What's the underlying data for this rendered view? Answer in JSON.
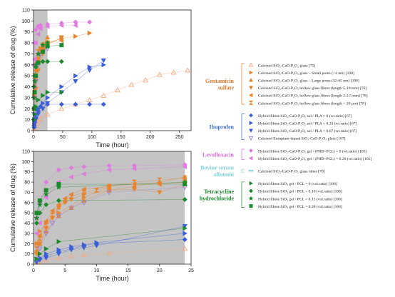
{
  "chart_data": [
    {
      "type": "scatter",
      "ylabel": "Cumulative release of drug (%)",
      "xlabel": "Time (hour)",
      "xlim": [
        0,
        270
      ],
      "ylim": [
        0,
        110
      ],
      "xticks": [
        "0",
        "50",
        "100",
        "150",
        "200",
        "250"
      ],
      "yticks": [
        "0",
        "10",
        "20",
        "30",
        "40",
        "50",
        "60",
        "70",
        "80",
        "90",
        "100",
        "110"
      ],
      "shaded_region": [
        0,
        24
      ],
      "series": [
        {
          "key": "s1",
          "marker": "tri-up-open",
          "color": "#f4a77f",
          "x": [
            1,
            2,
            4,
            6,
            8,
            12,
            24,
            48,
            72,
            96,
            120,
            144,
            168,
            192,
            216,
            240,
            264
          ],
          "y": [
            2,
            3,
            5,
            7,
            9,
            11,
            15,
            20,
            24,
            28,
            32,
            37,
            42,
            46,
            51,
            53,
            55
          ]
        },
        {
          "key": "s2",
          "marker": "tri-right",
          "color": "#e8842d",
          "x": [
            1,
            2,
            4,
            8,
            12,
            24,
            48,
            72,
            96
          ],
          "y": [
            32,
            40,
            50,
            65,
            75,
            80,
            84,
            86,
            89
          ]
        },
        {
          "key": "s3",
          "marker": "tri-up",
          "color": "#e8842d",
          "x": [
            1,
            2,
            4,
            8,
            12,
            16,
            24
          ],
          "y": [
            20,
            32,
            47,
            62,
            72,
            79,
            85
          ]
        },
        {
          "key": "s4",
          "marker": "tri-down",
          "color": "#e8842d",
          "x": [
            2,
            4,
            8,
            16,
            24,
            48
          ],
          "y": [
            20,
            38,
            55,
            70,
            78,
            85
          ]
        },
        {
          "key": "s5",
          "marker": "tri-left",
          "color": "#e8842d",
          "x": [
            2,
            4,
            8,
            16,
            24,
            48
          ],
          "y": [
            40,
            55,
            66,
            75,
            80,
            82
          ]
        },
        {
          "key": "s6",
          "marker": "hourglass",
          "color": "#e8842d",
          "x": [
            1,
            2,
            4,
            8,
            16,
            24,
            48
          ],
          "y": [
            38,
            50,
            63,
            72,
            78,
            80,
            84
          ]
        },
        {
          "key": "s7",
          "marker": "diamond",
          "color": "#3a5fd9",
          "x": [
            1,
            2,
            4,
            8,
            12,
            24,
            48,
            72,
            96,
            120
          ],
          "y": [
            3,
            8,
            12,
            18,
            22,
            24,
            24,
            24,
            24,
            24
          ]
        },
        {
          "key": "s8",
          "marker": "tri-right",
          "color": "#3a5fd9",
          "x": [
            1,
            2,
            4,
            8,
            16,
            24,
            48,
            72,
            96,
            120
          ],
          "y": [
            5,
            10,
            15,
            20,
            25,
            30,
            40,
            50,
            58,
            60
          ]
        },
        {
          "key": "s9",
          "marker": "tri-down",
          "color": "#3a5fd9",
          "x": [
            1,
            2,
            4,
            8,
            16,
            24,
            48,
            72,
            96,
            120
          ],
          "y": [
            3,
            6,
            10,
            15,
            20,
            25,
            35,
            45,
            55,
            64
          ]
        },
        {
          "key": "s10",
          "marker": "tri-down-open",
          "color": "#9a7fd8",
          "x": [
            1,
            2,
            4,
            8,
            12,
            24
          ],
          "y": [
            15,
            30,
            45,
            60,
            70,
            75
          ]
        },
        {
          "key": "s11",
          "marker": "diamond",
          "color": "#e07ae0",
          "x": [
            1,
            2,
            4,
            8,
            12,
            24,
            48,
            72,
            96
          ],
          "y": [
            60,
            80,
            92,
            95,
            96,
            97,
            98,
            99,
            99
          ]
        },
        {
          "key": "s12",
          "marker": "tri-left",
          "color": "#e07ae0",
          "x": [
            1,
            2,
            4,
            8,
            12,
            24,
            48,
            72
          ],
          "y": [
            40,
            65,
            80,
            88,
            93,
            95,
            96,
            96
          ]
        },
        {
          "key": "s13",
          "marker": "tri-right",
          "color": "#1b8a2c",
          "x": [
            1,
            2,
            4,
            8,
            16,
            24,
            48
          ],
          "y": [
            10,
            15,
            22,
            28,
            32,
            35,
            35
          ]
        },
        {
          "key": "s14",
          "marker": "diamond",
          "color": "#1b8a2c",
          "x": [
            1,
            2,
            4,
            8,
            16,
            24,
            48
          ],
          "y": [
            40,
            50,
            58,
            62,
            63,
            63,
            63
          ]
        },
        {
          "key": "s15",
          "marker": "star",
          "color": "#1b8a2c",
          "x": [
            1,
            2,
            4,
            8,
            16,
            24
          ],
          "y": [
            30,
            45,
            60,
            70,
            78,
            80
          ]
        },
        {
          "key": "s16",
          "marker": "square",
          "color": "#1b8a2c",
          "x": [
            1,
            2,
            4,
            8,
            16,
            24,
            48
          ],
          "y": [
            20,
            35,
            50,
            62,
            72,
            77,
            78
          ]
        }
      ]
    },
    {
      "type": "scatter",
      "ylabel": "Cumulative release of drug (%)",
      "xlabel": "Time (hour)",
      "xlim": [
        0,
        25
      ],
      "ylim": [
        0,
        110
      ],
      "xticks": [
        "0",
        "5",
        "10",
        "15",
        "20",
        "25"
      ],
      "yticks": [
        "0",
        "10",
        "20",
        "30",
        "40",
        "50",
        "60",
        "70",
        "80",
        "90",
        "100",
        "110"
      ],
      "shaded_region": [
        0,
        24
      ],
      "series": [
        {
          "key": "s1",
          "marker": "tri-up-open",
          "color": "#f4a77f",
          "x": [
            0.5,
            1,
            2,
            4,
            6,
            8,
            12,
            24
          ],
          "y": [
            2,
            3,
            4,
            6,
            8,
            9,
            11,
            15
          ]
        },
        {
          "key": "s2",
          "marker": "tri-right",
          "color": "#e8842d",
          "x": [
            0.5,
            1,
            2,
            4,
            8,
            12
          ],
          "y": [
            20,
            32,
            40,
            50,
            65,
            75
          ]
        },
        {
          "key": "s3",
          "marker": "tri-up",
          "color": "#e8842d",
          "x": [
            0.5,
            1,
            2,
            4,
            6,
            8,
            12,
            16,
            20,
            24
          ],
          "y": [
            12,
            20,
            32,
            47,
            55,
            62,
            72,
            76,
            80,
            85
          ]
        },
        {
          "key": "s4",
          "marker": "tri-down",
          "color": "#e8842d",
          "x": [
            0.5,
            1,
            2,
            3,
            4,
            5,
            6,
            8,
            12,
            16,
            20,
            24
          ],
          "y": [
            10,
            20,
            35,
            45,
            55,
            60,
            63,
            68,
            72,
            73,
            70,
            78
          ]
        },
        {
          "key": "s5",
          "marker": "tri-left",
          "color": "#e8842d",
          "x": [
            0.5,
            1,
            2,
            3,
            4,
            5,
            6,
            8,
            12,
            16,
            20,
            24
          ],
          "y": [
            20,
            28,
            42,
            52,
            58,
            64,
            68,
            73,
            76,
            78,
            78,
            80
          ]
        },
        {
          "key": "s6",
          "marker": "hourglass",
          "color": "#e8842d",
          "x": [
            0.5,
            1,
            2,
            3,
            4,
            5,
            6,
            8,
            10,
            12,
            16,
            20,
            24
          ],
          "y": [
            15,
            25,
            38,
            48,
            56,
            62,
            66,
            70,
            72,
            76,
            80,
            82,
            84
          ]
        },
        {
          "key": "s7",
          "marker": "diamond",
          "color": "#3a5fd9",
          "x": [
            0.5,
            1,
            2,
            4,
            6,
            8,
            10,
            24
          ],
          "y": [
            3,
            5,
            8,
            12,
            15,
            18,
            20,
            24
          ]
        },
        {
          "key": "s8",
          "marker": "tri-right",
          "color": "#3a5fd9",
          "x": [
            0.5,
            1,
            2,
            4,
            6,
            8,
            10,
            24
          ],
          "y": [
            4,
            6,
            10,
            14,
            17,
            19,
            21,
            30
          ]
        },
        {
          "key": "s9",
          "marker": "tri-down",
          "color": "#3a5fd9",
          "x": [
            0.5,
            1,
            2,
            4,
            6,
            8,
            10,
            24
          ],
          "y": [
            2,
            4,
            6,
            10,
            14,
            16,
            18,
            37
          ]
        },
        {
          "key": "s10",
          "marker": "tri-down-open",
          "color": "#9a7fd8",
          "x": [
            0.5,
            1,
            2,
            3,
            4,
            6,
            8,
            12,
            24
          ],
          "y": [
            5,
            15,
            30,
            40,
            47,
            55,
            60,
            70,
            75
          ]
        },
        {
          "key": "s11",
          "marker": "diamond",
          "color": "#e07ae0",
          "x": [
            0.5,
            1,
            2,
            4,
            6,
            8,
            12,
            16,
            24
          ],
          "y": [
            45,
            60,
            80,
            92,
            94,
            95,
            96,
            96,
            97
          ]
        },
        {
          "key": "s12",
          "marker": "tri-left",
          "color": "#e07ae0",
          "x": [
            0.5,
            1,
            2,
            4,
            6,
            8,
            12,
            16,
            24
          ],
          "y": [
            30,
            40,
            65,
            80,
            85,
            88,
            92,
            93,
            95
          ]
        },
        {
          "key": "s13",
          "marker": "tri-right",
          "color": "#1b8a2c",
          "x": [
            0.5,
            1,
            2,
            4,
            24
          ],
          "y": [
            5,
            10,
            15,
            22,
            35
          ]
        },
        {
          "key": "s14",
          "marker": "diamond",
          "color": "#1b8a2c",
          "x": [
            0.5,
            1,
            2,
            4,
            24
          ],
          "y": [
            40,
            50,
            58,
            62,
            63
          ]
        },
        {
          "key": "s15",
          "marker": "star",
          "color": "#1b8a2c",
          "x": [
            0.5,
            1,
            2,
            4,
            24
          ],
          "y": [
            45,
            58,
            68,
            75,
            80
          ]
        },
        {
          "key": "s16",
          "marker": "square",
          "color": "#1b8a2c",
          "x": [
            0.5,
            1,
            2,
            4,
            24
          ],
          "y": [
            50,
            62,
            72,
            78,
            78
          ]
        }
      ]
    }
  ],
  "legend": {
    "groups": [
      {
        "name": "Gentamicin sulfate",
        "color": "#e07a28",
        "entries": [
          {
            "series": "s1",
            "marker": "tri-up-open",
            "color": "#f4a77f",
            "text": "Calcined SiO₂-CaO-P₂O₅ glass [75]"
          },
          {
            "series": "s2",
            "marker": "tri-right",
            "color": "#e8842d",
            "text": "Calcined SiO₂-CaO-P₂O₅ glass – Small pores (<4 nm) [108]"
          },
          {
            "series": "s3",
            "marker": "tri-up",
            "color": "#e8842d",
            "text": "Calcined SiO₂-CaO-P₂O₅ glass – Large pores (32-65 nm) [108]"
          },
          {
            "series": "s4",
            "marker": "tri-down",
            "color": "#e8842d",
            "text": "Calcined SiO₂-CaO-P₂O₅ hollow glass fibres (length 5-10 mm) [76]"
          },
          {
            "series": "s5",
            "marker": "tri-left",
            "color": "#e8842d",
            "text": "Calcined SiO₂-CaO-P₂O₅ hollow glass fibres (length 2-2.5 mm) [78]"
          },
          {
            "series": "s6",
            "marker": "hourglass",
            "color": "#e8842d",
            "text": "Calcined SiO₂-CaO-P₂O₅ hollow glass fibres (length < 20 µm) [78]"
          }
        ]
      },
      {
        "name": "Ibuprofen",
        "color": "#3a6fd9",
        "entries": [
          {
            "series": "s7",
            "marker": "diamond",
            "color": "#3a5fd9",
            "text": "Hybrid fibres SiO₂-CaO-P₂O₅ sol / PLA = 0 (wt.ratio) [67]"
          },
          {
            "series": "s8",
            "marker": "tri-right",
            "color": "#3a5fd9",
            "text": "Hybrid fibres SiO₂-CaO-P₂O₅ sol / PLA = 0.33 (wt.ratio) [67]"
          },
          {
            "series": "s9",
            "marker": "tri-down",
            "color": "#3a5fd9",
            "text": "Hybrid fibres SiO₂-CaO-P₂O₅ sol / PLA = 0.67 (wt.ratio) [67]"
          },
          {
            "series": "s10",
            "marker": "tri-down-open",
            "color": "#9a7fd8",
            "text": "Calcined Europium-doped SiO₂-CaO-P₂O₅ glass [107]"
          }
        ]
      },
      {
        "name": "Levofloxacin",
        "color": "#d86ad8",
        "entries": [
          {
            "series": "s11",
            "marker": "diamond",
            "color": "#e07ae0",
            "text": "Hybrid fibres SiO₂-CaO-P₂O₅ gel / (PHB+PCL) = 0 (wt.ratio) [105]"
          },
          {
            "series": "s12",
            "marker": "tri-left",
            "color": "#e07ae0",
            "text": "Hybrid fibres SiO₂-CaO-P₂O₅ gel / (PHB+PCL) = 0.20 (wt.ratio) [105]"
          }
        ]
      },
      {
        "name": "Bovine serum albumin",
        "color": "#7fd0dc",
        "entries": [
          {
            "series": "s17",
            "marker": "dash",
            "color": "#7fd0dc",
            "text": "Calcined SiO₂-CaO-P₂O₅ glass tubes [70]"
          }
        ]
      },
      {
        "name": "Tetracycline hydrochloride",
        "color": "#1b8a2c",
        "entries": [
          {
            "series": "s13",
            "marker": "tri-right",
            "color": "#1b8a2c",
            "text": "Hybrid fibres SiO₂ gel / PCL = 0 (vol.ratio) [106]"
          },
          {
            "series": "s14",
            "marker": "diamond",
            "color": "#1b8a2c",
            "text": "Hybrid fibres SiO₂ gel / PCL = 0.10 (vol.ratio) [106]"
          },
          {
            "series": "s15",
            "marker": "star",
            "color": "#1b8a2c",
            "text": "Hybrid fibres SiO₂ gel / PCL = 0.15 (vol.ratio) [106]"
          },
          {
            "series": "s16",
            "marker": "square",
            "color": "#1b8a2c",
            "text": "Hybrid fibres SiO₂ gel / PCL = 0.20 (vol.ratio) [106]"
          }
        ]
      }
    ]
  }
}
